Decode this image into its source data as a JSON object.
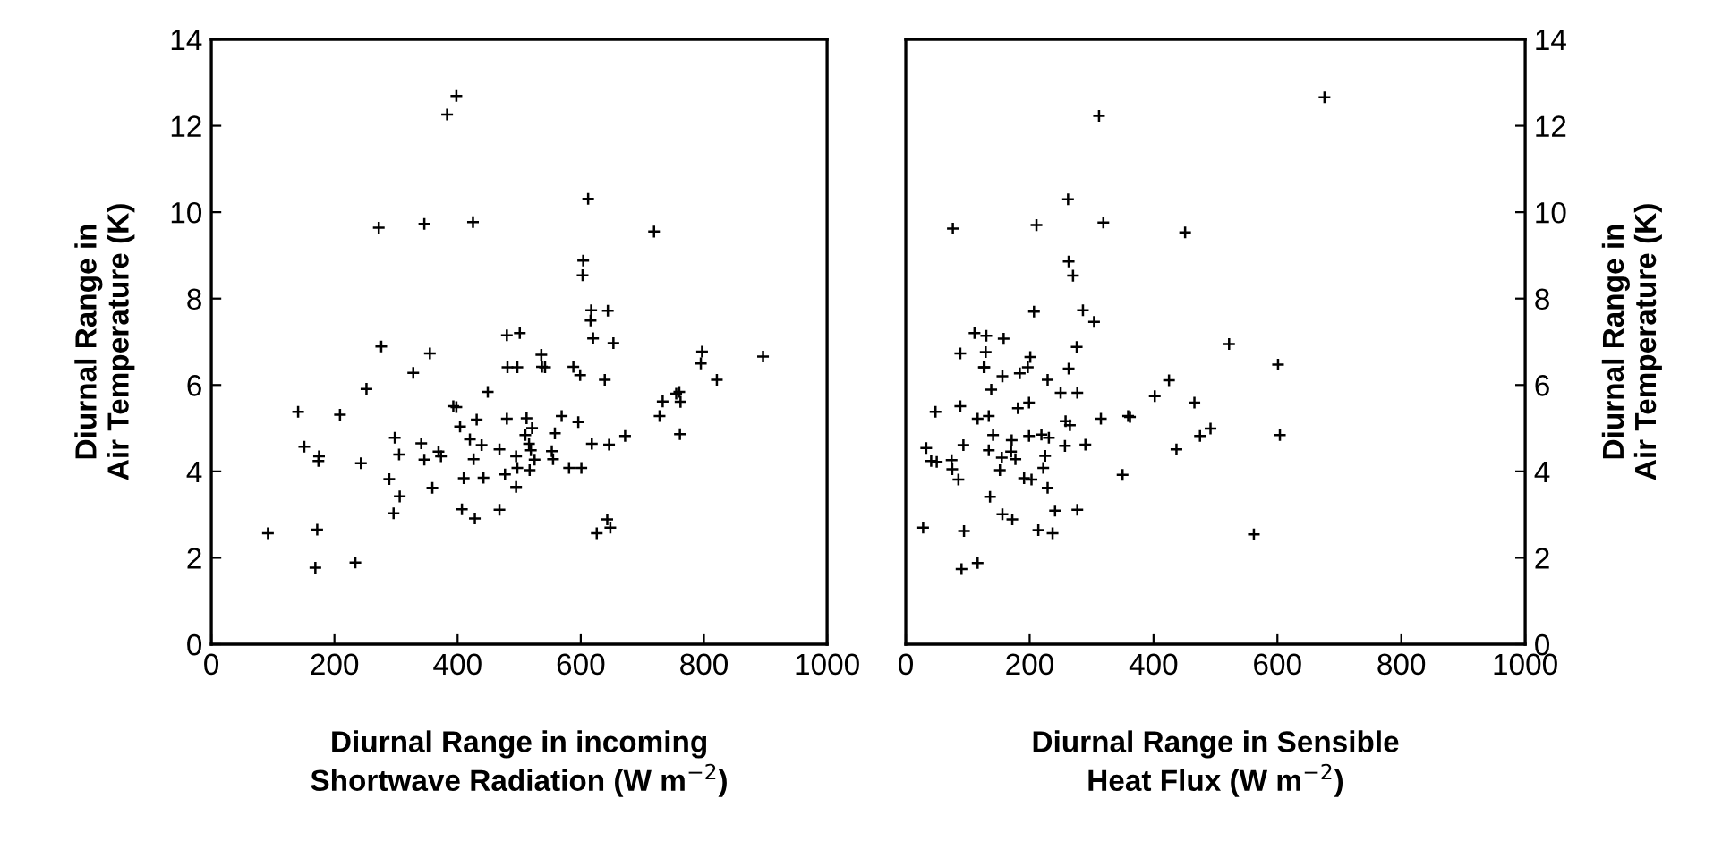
{
  "chart_data": [
    {
      "type": "scatter",
      "xlabel": "Diurnal Range in incoming\nShortwave Radiation (W m$^{−2}$)",
      "ylabel": "Diurnal Range in\nAir Temperature (K)",
      "xlim": [
        0,
        1000
      ],
      "xticks": [
        0,
        200,
        400,
        600,
        800,
        1000
      ],
      "ylim": [
        0,
        14
      ],
      "yticks": [
        0,
        2,
        4,
        6,
        8,
        10,
        12,
        14
      ],
      "grid": false,
      "marker": "cross",
      "series": [
        {
          "color": "#000000",
          "x": [
            398,
            383,
            272,
            346,
            425,
            480,
            501,
            481,
            497,
            276,
            355,
            328,
            449,
            252,
            393,
            398,
            141,
            209,
            404,
            431,
            480,
            512,
            521,
            510,
            298,
            420,
            439,
            341,
            151,
            516,
            519,
            369,
            373,
            305,
            468,
            175,
            174,
            243,
            346,
            426,
            495,
            525,
            497,
            517,
            477,
            289,
            410,
            442,
            359,
            495,
            306,
            296,
            407,
            468,
            428,
            92,
            172,
            169,
            234,
            612,
            719,
            604,
            603,
            617,
            644,
            616,
            620,
            653,
            536,
            537,
            542,
            588,
            599,
            639,
            797,
            795,
            896,
            821,
            755,
            760,
            733,
            762,
            728,
            761,
            569,
            596,
            558,
            672,
            618,
            646,
            553,
            555,
            581,
            601,
            643,
            648,
            626
          ],
          "values": [
            12.69,
            12.26,
            9.64,
            9.73,
            9.77,
            7.15,
            7.2,
            6.41,
            6.41,
            6.89,
            6.73,
            6.28,
            5.84,
            5.91,
            5.51,
            5.49,
            5.38,
            5.31,
            5.04,
            5.2,
            5.22,
            5.23,
            5.0,
            4.84,
            4.78,
            4.74,
            4.61,
            4.65,
            4.57,
            4.64,
            4.49,
            4.46,
            4.35,
            4.39,
            4.51,
            4.35,
            4.24,
            4.19,
            4.27,
            4.28,
            4.35,
            4.27,
            4.08,
            4.03,
            3.93,
            3.82,
            3.84,
            3.85,
            3.62,
            3.64,
            3.42,
            3.03,
            3.12,
            3.11,
            2.91,
            2.57,
            2.65,
            1.77,
            1.89,
            10.31,
            9.55,
            8.88,
            8.54,
            7.73,
            7.72,
            7.49,
            7.08,
            6.97,
            6.7,
            6.42,
            6.41,
            6.42,
            6.23,
            6.12,
            6.77,
            6.5,
            6.66,
            6.12,
            5.8,
            5.84,
            5.62,
            5.61,
            5.28,
            4.86,
            5.28,
            5.14,
            4.88,
            4.82,
            4.64,
            4.62,
            4.47,
            4.28,
            4.08,
            4.08,
            2.89,
            2.7,
            2.57
          ]
        }
      ]
    },
    {
      "type": "scatter",
      "xlabel": "Diurnal Range in Sensible\nHeat Flux (W m$^{−2}$)",
      "y2label": "Diurnal Range in\nAir Temperature (K)",
      "xlim": [
        0,
        1000
      ],
      "xticks": [
        0,
        200,
        400,
        600,
        800,
        1000
      ],
      "y2lim": [
        0,
        14
      ],
      "y2ticks": [
        0,
        2,
        4,
        6,
        8,
        10,
        12,
        14
      ],
      "grid": false,
      "marker": "cross",
      "series": [
        {
          "color": "#000000",
          "axis": "y2",
          "x": [
            312,
            262,
            76,
            211,
            319,
            451,
            263,
            270,
            207,
            286,
            304,
            111,
            130,
            158,
            88,
            129,
            276,
            522,
            201,
            126,
            127,
            197,
            184,
            156,
            263,
            229,
            138,
            250,
            277,
            425,
            402,
            466,
            48,
            88,
            116,
            134,
            181,
            199,
            258,
            265,
            315,
            359,
            362,
            475,
            492,
            437,
            33,
            41,
            50,
            74,
            93,
            75,
            85,
            141,
            134,
            171,
            170,
            177,
            155,
            152,
            199,
            219,
            231,
            225,
            191,
            203,
            222,
            229,
            257,
            290,
            350,
            136,
            156,
            172,
            241,
            277,
            214,
            237,
            28,
            94,
            90,
            116,
            676,
            601,
            604,
            562
          ],
          "values": [
            12.23,
            10.3,
            9.62,
            9.7,
            9.76,
            9.53,
            8.86,
            8.53,
            7.7,
            7.73,
            7.46,
            7.2,
            7.14,
            7.07,
            6.73,
            6.76,
            6.88,
            6.95,
            6.65,
            6.41,
            6.41,
            6.41,
            6.27,
            6.2,
            6.38,
            6.12,
            5.89,
            5.82,
            5.82,
            6.11,
            5.74,
            5.59,
            5.38,
            5.51,
            5.22,
            5.28,
            5.46,
            5.59,
            5.16,
            5.07,
            5.22,
            5.28,
            5.26,
            4.82,
            4.99,
            4.51,
            4.54,
            4.24,
            4.22,
            4.26,
            4.61,
            4.05,
            3.81,
            4.84,
            4.49,
            4.72,
            4.46,
            4.28,
            4.32,
            4.03,
            4.82,
            4.85,
            4.78,
            4.36,
            3.84,
            3.81,
            4.08,
            3.62,
            4.59,
            4.62,
            3.92,
            3.41,
            3.01,
            2.89,
            3.09,
            3.11,
            2.64,
            2.57,
            2.7,
            2.62,
            1.74,
            1.88,
            12.66,
            6.47,
            4.84,
            2.54
          ]
        }
      ]
    }
  ]
}
